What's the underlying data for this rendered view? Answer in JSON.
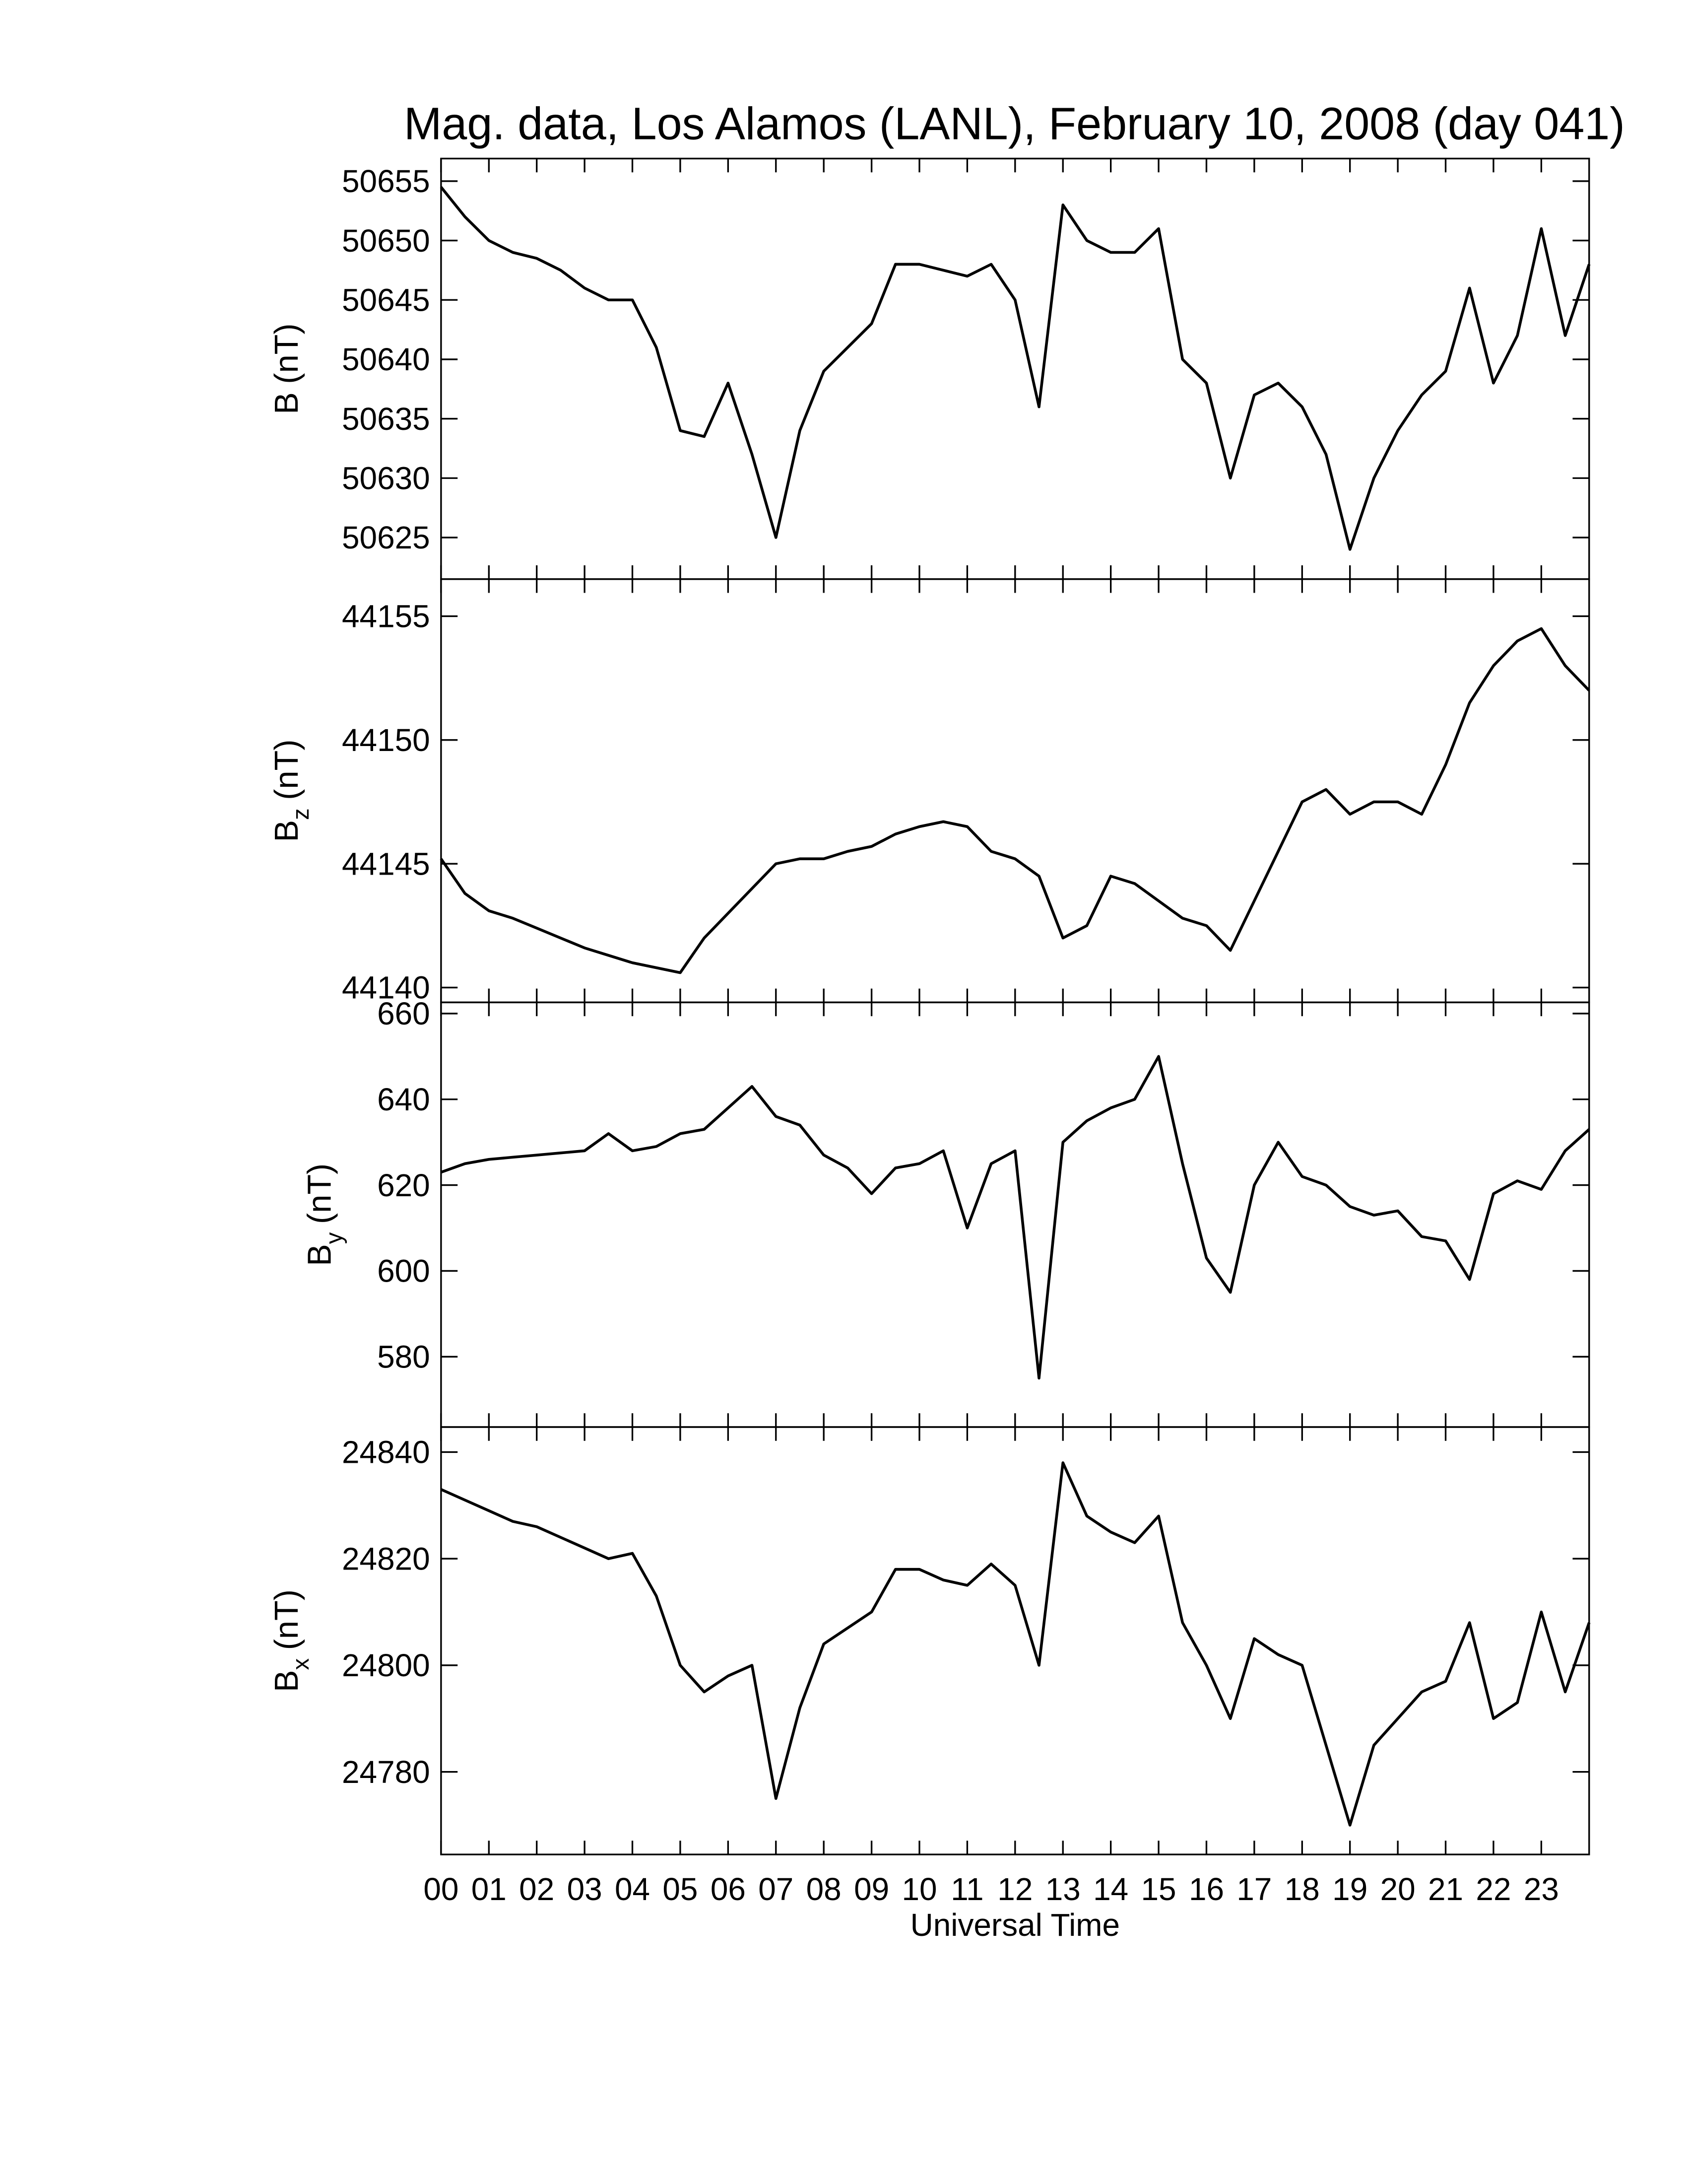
{
  "chart_data": [
    {
      "type": "line",
      "title": "Mag. data, Los Alamos (LANL), February 10, 2008 (day 041)",
      "ylabel": "B",
      "ylabel_unit": "(nT)",
      "color": "#000000",
      "x": [
        0,
        0.5,
        1,
        1.5,
        2,
        2.5,
        3,
        3.5,
        4,
        4.5,
        5,
        5.5,
        6,
        6.5,
        7,
        7.5,
        8,
        8.5,
        9,
        9.5,
        10,
        10.5,
        11,
        11.5,
        12,
        12.5,
        13,
        13.5,
        14,
        14.5,
        15,
        15.5,
        16,
        16.5,
        17,
        17.5,
        18,
        18.5,
        19,
        19.5,
        20,
        20.5,
        21,
        21.5,
        22,
        22.5,
        23,
        23.5,
        24
      ],
      "values": [
        50654.5,
        50652,
        50650,
        50649,
        50648.5,
        50647.5,
        50646,
        50645,
        50645,
        50641,
        50634,
        50633.5,
        50638,
        50632,
        50625,
        50634,
        50639,
        50641,
        50643,
        50648,
        50648,
        50647.5,
        50647,
        50648,
        50645,
        50636,
        50653,
        50650,
        50649,
        50649,
        50651,
        50640,
        50638,
        50630,
        50637,
        50638,
        50636,
        50632,
        50624,
        50630,
        50634,
        50637,
        50639,
        50646,
        50638,
        50642,
        50651,
        50642,
        50648
      ],
      "xlim": [
        0,
        24
      ],
      "ylim": [
        50621.5,
        50656.9
      ],
      "yticks": [
        50625,
        50630,
        50635,
        50640,
        50645,
        50650,
        50655
      ]
    },
    {
      "type": "line",
      "ylabel": "B",
      "ylabel_sub": "z",
      "ylabel_unit": "(nT)",
      "color": "#000000",
      "x": [
        0,
        0.5,
        1,
        1.5,
        2,
        2.5,
        3,
        3.5,
        4,
        4.5,
        5,
        5.5,
        6,
        6.5,
        7,
        7.5,
        8,
        8.5,
        9,
        9.5,
        10,
        10.5,
        11,
        11.5,
        12,
        12.5,
        13,
        13.5,
        14,
        14.5,
        15,
        15.5,
        16,
        16.5,
        17,
        17.5,
        18,
        18.5,
        19,
        19.5,
        20,
        20.5,
        21,
        21.5,
        22,
        22.5,
        23,
        23.5,
        24
      ],
      "values": [
        44145.2,
        44143.8,
        44143.1,
        44142.8,
        44142.4,
        44142,
        44141.6,
        44141.3,
        44141,
        44140.8,
        44140.6,
        44142,
        44143,
        44144,
        44145,
        44145.2,
        44145.2,
        44145.5,
        44145.7,
        44146.2,
        44146.5,
        44146.7,
        44146.5,
        44145.5,
        44145.2,
        44144.5,
        44142,
        44142.5,
        44144.5,
        44144.2,
        44143.5,
        44142.8,
        44142.5,
        44141.5,
        44143.5,
        44145.5,
        44147.5,
        44148,
        44147,
        44147.5,
        44147.5,
        44147,
        44149,
        44151.5,
        44153,
        44154,
        44154.5,
        44153,
        44152
      ],
      "xlim": [
        0,
        24
      ],
      "ylim": [
        44139.4,
        44156.5
      ],
      "yticks": [
        44140,
        44145,
        44150,
        44155
      ]
    },
    {
      "type": "line",
      "ylabel": "B",
      "ylabel_sub": "y",
      "ylabel_unit": "(nT)",
      "color": "#000000",
      "x": [
        0,
        0.5,
        1,
        1.5,
        2,
        2.5,
        3,
        3.5,
        4,
        4.5,
        5,
        5.5,
        6,
        6.5,
        7,
        7.5,
        8,
        8.5,
        9,
        9.5,
        10,
        10.5,
        11,
        11.5,
        12,
        12.5,
        13,
        13.5,
        14,
        14.5,
        15,
        15.5,
        16,
        16.5,
        17,
        17.5,
        18,
        18.5,
        19,
        19.5,
        20,
        20.5,
        21,
        21.5,
        22,
        22.5,
        23,
        23.5,
        24
      ],
      "values": [
        623,
        625,
        626,
        626.5,
        627,
        627.5,
        628,
        632,
        628,
        629,
        632,
        633,
        638,
        643,
        636,
        634,
        627,
        624,
        618,
        624,
        625,
        628,
        610,
        625,
        628,
        575,
        630,
        635,
        638,
        640,
        650,
        625,
        603,
        595,
        620,
        630,
        622,
        620,
        615,
        613,
        614,
        608,
        607,
        598,
        618,
        621,
        619,
        628,
        633
      ],
      "xlim": [
        0,
        24
      ],
      "ylim": [
        563.6,
        662.6
      ],
      "yticks": [
        580,
        600,
        620,
        640,
        660
      ]
    },
    {
      "type": "line",
      "ylabel": "B",
      "ylabel_sub": "x",
      "ylabel_unit": "(nT)",
      "xlabel": "Universal Time",
      "color": "#000000",
      "x": [
        0,
        0.5,
        1,
        1.5,
        2,
        2.5,
        3,
        3.5,
        4,
        4.5,
        5,
        5.5,
        6,
        6.5,
        7,
        7.5,
        8,
        8.5,
        9,
        9.5,
        10,
        10.5,
        11,
        11.5,
        12,
        12.5,
        13,
        13.5,
        14,
        14.5,
        15,
        15.5,
        16,
        16.5,
        17,
        17.5,
        18,
        18.5,
        19,
        19.5,
        20,
        20.5,
        21,
        21.5,
        22,
        22.5,
        23,
        23.5,
        24
      ],
      "values": [
        24833,
        24831,
        24829,
        24827,
        24826,
        24824,
        24822,
        24820,
        24821,
        24813,
        24800,
        24795,
        24798,
        24800,
        24775,
        24792,
        24804,
        24807,
        24810,
        24818,
        24818,
        24816,
        24815,
        24819,
        24815,
        24800,
        24838,
        24828,
        24825,
        24823,
        24828,
        24808,
        24800,
        24790,
        24805,
        24802,
        24800,
        24785,
        24770,
        24785,
        24790,
        24795,
        24797,
        24808,
        24790,
        24793,
        24810,
        24795,
        24808
      ],
      "xlim": [
        0,
        24
      ],
      "ylim": [
        24764.5,
        24844.7
      ],
      "yticks": [
        24780,
        24800,
        24820,
        24840
      ],
      "xticks": [
        {
          "value": 0,
          "label": "00"
        },
        {
          "value": 1,
          "label": "01"
        },
        {
          "value": 2,
          "label": "02"
        },
        {
          "value": 3,
          "label": "03"
        },
        {
          "value": 4,
          "label": "04"
        },
        {
          "value": 5,
          "label": "05"
        },
        {
          "value": 6,
          "label": "06"
        },
        {
          "value": 7,
          "label": "07"
        },
        {
          "value": 8,
          "label": "08"
        },
        {
          "value": 9,
          "label": "09"
        },
        {
          "value": 10,
          "label": "10"
        },
        {
          "value": 11,
          "label": "11"
        },
        {
          "value": 12,
          "label": "12"
        },
        {
          "value": 13,
          "label": "13"
        },
        {
          "value": 14,
          "label": "14"
        },
        {
          "value": 15,
          "label": "15"
        },
        {
          "value": 16,
          "label": "16"
        },
        {
          "value": 17,
          "label": "17"
        },
        {
          "value": 18,
          "label": "18"
        },
        {
          "value": 19,
          "label": "19"
        },
        {
          "value": 20,
          "label": "20"
        },
        {
          "value": 21,
          "label": "21"
        },
        {
          "value": 22,
          "label": "22"
        },
        {
          "value": 23,
          "label": "23"
        }
      ]
    }
  ]
}
